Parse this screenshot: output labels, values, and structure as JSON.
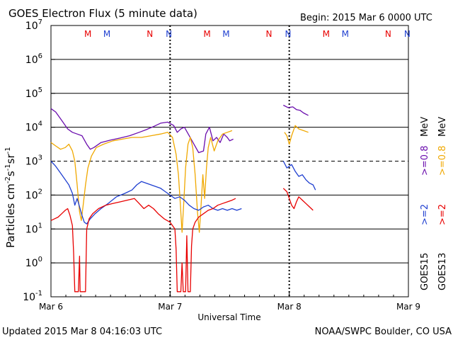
{
  "header": {
    "title": "GOES Electron Flux (5 minute data)",
    "begin": "Begin: 2015 Mar 6 0000 UTC"
  },
  "footer": {
    "updated": "Updated 2015 Mar  8 04:16:03 UTC",
    "credit": "NOAA/SWPC Boulder, CO USA"
  },
  "colors": {
    "goes15_08": "#6a0dad",
    "goes13_08": "#f0a800",
    "goes15_2": "#1f3fd0",
    "goes13_2": "#e80000",
    "marker_M": "#e80000",
    "marker_N": "#1f3fd0"
  },
  "chart_data": {
    "type": "line",
    "title": "GOES Electron Flux (5 minute data)",
    "xlabel": "Universal Time",
    "ylabel_main": "Particles cm",
    "ylabel_sup1": "-2",
    "ylabel_mid1": "s",
    "ylabel_sup2": "-1",
    "ylabel_mid2": "sr",
    "ylabel_sup3": "-1",
    "x_range_days": [
      0,
      3
    ],
    "x_ticks": [
      {
        "day": 0,
        "label": "Mar 6"
      },
      {
        "day": 1,
        "label": "Mar 7"
      },
      {
        "day": 2,
        "label": "Mar 8"
      },
      {
        "day": 3,
        "label": "Mar 9"
      }
    ],
    "y_scale": "log",
    "y_range_exp": [
      -1,
      7
    ],
    "y_ticks": [
      {
        "exp": -1,
        "label": "10",
        "sup": "-1"
      },
      {
        "exp": 0,
        "label": "10",
        "sup": "0"
      },
      {
        "exp": 1,
        "label": "10",
        "sup": "1"
      },
      {
        "exp": 2,
        "label": "10",
        "sup": "2"
      },
      {
        "exp": 3,
        "label": "10",
        "sup": "3"
      },
      {
        "exp": 4,
        "label": "10",
        "sup": "4"
      },
      {
        "exp": 5,
        "label": "10",
        "sup": "5"
      },
      {
        "exp": 6,
        "label": "10",
        "sup": "6"
      },
      {
        "exp": 7,
        "label": "10",
        "sup": "7"
      }
    ],
    "dashed_threshold_exp": 3,
    "markers": [
      {
        "label": "M",
        "day": 0.31,
        "color": "marker_M"
      },
      {
        "label": "M",
        "day": 0.47,
        "color": "marker_N"
      },
      {
        "label": "N",
        "day": 0.83,
        "color": "marker_M"
      },
      {
        "label": "N",
        "day": 0.99,
        "color": "marker_N"
      },
      {
        "label": "M",
        "day": 1.31,
        "color": "marker_M"
      },
      {
        "label": "M",
        "day": 1.47,
        "color": "marker_N"
      },
      {
        "label": "N",
        "day": 1.83,
        "color": "marker_M"
      },
      {
        "label": "N",
        "day": 1.99,
        "color": "marker_N"
      },
      {
        "label": "M",
        "day": 2.31,
        "color": "marker_M"
      },
      {
        "label": "M",
        "day": 2.47,
        "color": "marker_N"
      },
      {
        "label": "N",
        "day": 2.83,
        "color": "marker_M"
      },
      {
        "label": "N",
        "day": 2.99,
        "color": "marker_N"
      }
    ],
    "day_boundaries": [
      1,
      2
    ],
    "right_labels": {
      "sat15": "GOES15",
      "sat13": "GOES13",
      "thr_2_purple": ">=0.8",
      "thr_2_orange": ">=0.8",
      "thr_2_blue": ">=2",
      "thr_2_red": ">=2",
      "unit": "MeV"
    },
    "series": [
      {
        "name": "GOES15 >=0.8 MeV",
        "color": "goes15_08",
        "segments": [
          [
            [
              0.0,
              4.55
            ],
            [
              0.04,
              4.45
            ],
            [
              0.09,
              4.2
            ],
            [
              0.14,
              3.95
            ],
            [
              0.18,
              3.85
            ],
            [
              0.22,
              3.8
            ],
            [
              0.26,
              3.75
            ],
            [
              0.3,
              3.5
            ],
            [
              0.33,
              3.35
            ],
            [
              0.36,
              3.4
            ],
            [
              0.42,
              3.55
            ],
            [
              0.5,
              3.62
            ],
            [
              0.58,
              3.68
            ],
            [
              0.66,
              3.75
            ],
            [
              0.74,
              3.85
            ],
            [
              0.8,
              3.93
            ],
            [
              0.86,
              4.02
            ],
            [
              0.92,
              4.12
            ],
            [
              0.98,
              4.15
            ],
            [
              1.03,
              4.05
            ],
            [
              1.06,
              3.85
            ],
            [
              1.09,
              3.95
            ],
            [
              1.12,
              4.0
            ],
            [
              1.16,
              3.75
            ],
            [
              1.2,
              3.5
            ],
            [
              1.24,
              3.25
            ],
            [
              1.28,
              3.3
            ],
            [
              1.3,
              3.8
            ],
            [
              1.33,
              4.0
            ],
            [
              1.36,
              3.6
            ],
            [
              1.39,
              3.7
            ],
            [
              1.42,
              3.55
            ],
            [
              1.45,
              3.8
            ],
            [
              1.48,
              3.7
            ],
            [
              1.5,
              3.6
            ],
            [
              1.53,
              3.65
            ]
          ],
          [
            [
              1.95,
              4.65
            ],
            [
              1.99,
              4.58
            ],
            [
              2.03,
              4.6
            ],
            [
              2.06,
              4.52
            ],
            [
              2.09,
              4.5
            ],
            [
              2.12,
              4.42
            ],
            [
              2.16,
              4.35
            ]
          ]
        ]
      },
      {
        "name": "GOES13 >=0.8 MeV",
        "color": "goes13_08",
        "segments": [
          [
            [
              0.0,
              3.55
            ],
            [
              0.04,
              3.45
            ],
            [
              0.08,
              3.35
            ],
            [
              0.12,
              3.4
            ],
            [
              0.15,
              3.5
            ],
            [
              0.18,
              3.3
            ],
            [
              0.2,
              3.0
            ],
            [
              0.22,
              2.3
            ],
            [
              0.24,
              1.5
            ],
            [
              0.255,
              1.25
            ],
            [
              0.27,
              1.7
            ],
            [
              0.29,
              2.3
            ],
            [
              0.31,
              2.8
            ],
            [
              0.34,
              3.15
            ],
            [
              0.38,
              3.4
            ],
            [
              0.44,
              3.5
            ],
            [
              0.52,
              3.6
            ],
            [
              0.6,
              3.65
            ],
            [
              0.68,
              3.7
            ],
            [
              0.76,
              3.7
            ],
            [
              0.84,
              3.75
            ],
            [
              0.92,
              3.8
            ],
            [
              0.98,
              3.85
            ],
            [
              1.02,
              3.7
            ],
            [
              1.05,
              3.2
            ],
            [
              1.07,
              2.6
            ],
            [
              1.085,
              1.8
            ],
            [
              1.1,
              0.9
            ],
            [
              1.115,
              1.8
            ],
            [
              1.13,
              2.8
            ],
            [
              1.15,
              3.5
            ],
            [
              1.17,
              3.7
            ],
            [
              1.19,
              3.4
            ],
            [
              1.21,
              2.6
            ],
            [
              1.23,
              1.5
            ],
            [
              1.245,
              0.9
            ],
            [
              1.26,
              1.7
            ],
            [
              1.275,
              2.6
            ],
            [
              1.29,
              1.9
            ],
            [
              1.305,
              2.8
            ],
            [
              1.32,
              3.4
            ],
            [
              1.34,
              3.7
            ],
            [
              1.37,
              3.3
            ],
            [
              1.4,
              3.6
            ],
            [
              1.44,
              3.8
            ],
            [
              1.48,
              3.85
            ],
            [
              1.52,
              3.9
            ]
          ],
          [
            [
              1.96,
              3.85
            ],
            [
              1.98,
              3.75
            ],
            [
              2.0,
              3.5
            ],
            [
              2.02,
              3.75
            ],
            [
              2.05,
              4.05
            ],
            [
              2.08,
              3.95
            ],
            [
              2.12,
              3.9
            ],
            [
              2.16,
              3.85
            ]
          ]
        ]
      },
      {
        "name": "GOES15 >=2 MeV",
        "color": "goes15_2",
        "segments": [
          [
            [
              0.0,
              3.0
            ],
            [
              0.04,
              2.85
            ],
            [
              0.08,
              2.65
            ],
            [
              0.12,
              2.45
            ],
            [
              0.15,
              2.3
            ],
            [
              0.18,
              2.05
            ],
            [
              0.2,
              1.7
            ],
            [
              0.22,
              1.9
            ],
            [
              0.24,
              1.65
            ],
            [
              0.26,
              1.4
            ],
            [
              0.28,
              1.2
            ],
            [
              0.3,
              1.15
            ],
            [
              0.33,
              1.3
            ],
            [
              0.37,
              1.45
            ],
            [
              0.42,
              1.6
            ],
            [
              0.48,
              1.75
            ],
            [
              0.55,
              1.95
            ],
            [
              0.62,
              2.05
            ],
            [
              0.68,
              2.15
            ],
            [
              0.72,
              2.3
            ],
            [
              0.76,
              2.4
            ],
            [
              0.8,
              2.35
            ],
            [
              0.84,
              2.3
            ],
            [
              0.88,
              2.25
            ],
            [
              0.92,
              2.2
            ],
            [
              0.96,
              2.1
            ],
            [
              1.0,
              2.0
            ],
            [
              1.04,
              1.9
            ],
            [
              1.08,
              1.95
            ],
            [
              1.12,
              1.85
            ],
            [
              1.16,
              1.7
            ],
            [
              1.2,
              1.6
            ],
            [
              1.24,
              1.55
            ],
            [
              1.28,
              1.65
            ],
            [
              1.32,
              1.7
            ],
            [
              1.36,
              1.6
            ],
            [
              1.4,
              1.55
            ],
            [
              1.44,
              1.6
            ],
            [
              1.48,
              1.55
            ],
            [
              1.52,
              1.6
            ],
            [
              1.56,
              1.55
            ],
            [
              1.6,
              1.6
            ]
          ],
          [
            [
              1.95,
              3.0
            ],
            [
              1.98,
              2.8
            ],
            [
              2.02,
              2.9
            ],
            [
              2.05,
              2.7
            ],
            [
              2.08,
              2.55
            ],
            [
              2.11,
              2.6
            ],
            [
              2.14,
              2.45
            ],
            [
              2.17,
              2.35
            ],
            [
              2.2,
              2.3
            ],
            [
              2.22,
              2.15
            ]
          ]
        ]
      },
      {
        "name": "GOES13 >=2 MeV",
        "color": "goes13_2",
        "segments": [
          [
            [
              0.0,
              1.25
            ],
            [
              0.03,
              1.3
            ],
            [
              0.06,
              1.35
            ],
            [
              0.09,
              1.45
            ],
            [
              0.12,
              1.55
            ],
            [
              0.14,
              1.6
            ],
            [
              0.16,
              1.4
            ],
            [
              0.18,
              1.1
            ],
            [
              0.19,
              0.3
            ],
            [
              0.2,
              -0.85
            ],
            [
              0.21,
              -0.85
            ],
            [
              0.22,
              -0.85
            ],
            [
              0.23,
              -0.85
            ],
            [
              0.24,
              0.2
            ],
            [
              0.245,
              -0.85
            ],
            [
              0.27,
              -0.85
            ],
            [
              0.29,
              -0.85
            ],
            [
              0.3,
              1.0
            ],
            [
              0.32,
              1.3
            ],
            [
              0.35,
              1.45
            ],
            [
              0.4,
              1.6
            ],
            [
              0.46,
              1.7
            ],
            [
              0.52,
              1.75
            ],
            [
              0.58,
              1.8
            ],
            [
              0.64,
              1.85
            ],
            [
              0.7,
              1.9
            ],
            [
              0.74,
              1.75
            ],
            [
              0.78,
              1.6
            ],
            [
              0.82,
              1.7
            ],
            [
              0.86,
              1.6
            ],
            [
              0.9,
              1.45
            ],
            [
              0.95,
              1.3
            ],
            [
              1.0,
              1.2
            ],
            [
              1.02,
              1.1
            ],
            [
              1.04,
              1.0
            ],
            [
              1.05,
              0.4
            ],
            [
              1.06,
              -0.85
            ],
            [
              1.07,
              -0.85
            ],
            [
              1.08,
              -0.85
            ],
            [
              1.09,
              -0.85
            ],
            [
              1.1,
              0.0
            ],
            [
              1.11,
              -0.85
            ],
            [
              1.13,
              -0.85
            ],
            [
              1.14,
              0.8
            ],
            [
              1.15,
              -0.85
            ],
            [
              1.16,
              -0.85
            ],
            [
              1.17,
              -0.85
            ],
            [
              1.18,
              0.5
            ],
            [
              1.19,
              1.0
            ],
            [
              1.21,
              1.2
            ],
            [
              1.24,
              1.35
            ],
            [
              1.28,
              1.45
            ],
            [
              1.32,
              1.55
            ],
            [
              1.36,
              1.6
            ],
            [
              1.4,
              1.7
            ],
            [
              1.44,
              1.75
            ],
            [
              1.48,
              1.8
            ],
            [
              1.52,
              1.85
            ],
            [
              1.55,
              1.9
            ]
          ],
          [
            [
              1.95,
              2.2
            ],
            [
              1.98,
              2.1
            ],
            [
              2.0,
              1.9
            ],
            [
              2.02,
              1.7
            ],
            [
              2.04,
              1.6
            ],
            [
              2.06,
              1.8
            ],
            [
              2.08,
              1.95
            ],
            [
              2.11,
              1.85
            ],
            [
              2.14,
              1.75
            ],
            [
              2.17,
              1.65
            ],
            [
              2.2,
              1.55
            ]
          ]
        ]
      }
    ]
  }
}
